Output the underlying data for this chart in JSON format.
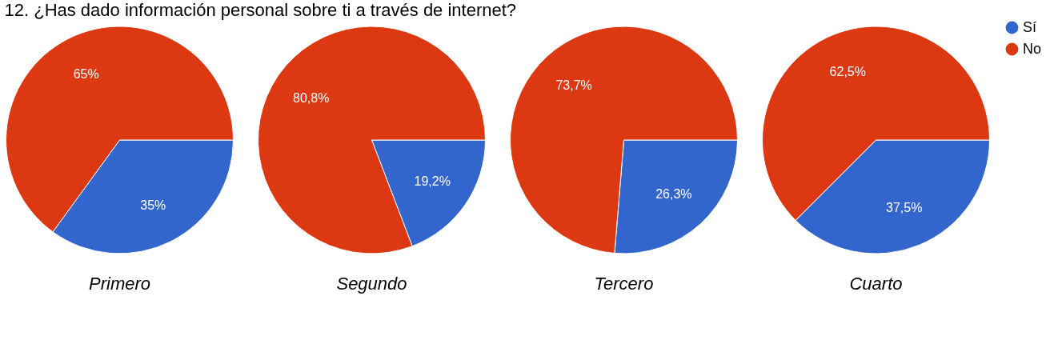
{
  "chart_data": [
    {
      "type": "pie",
      "title": "12. ¿Has dado información personal sobre ti a través de internet?",
      "xlabel": "Primero",
      "categories": [
        null,
        null
      ],
      "values": [
        35,
        65
      ],
      "colors": [
        "#3366cc",
        "#dc3912"
      ],
      "value_labels": [
        "35%",
        "65%"
      ],
      "legend": false
    },
    {
      "type": "pie",
      "xlabel": "Segundo",
      "categories": [
        null,
        null
      ],
      "values": [
        19.2,
        80.8
      ],
      "colors": [
        "#3366cc",
        "#dc3912"
      ],
      "value_labels": [
        "19,2%",
        "80,8%"
      ],
      "legend": false
    },
    {
      "type": "pie",
      "xlabel": "Tercero",
      "categories": [
        null,
        null
      ],
      "values": [
        26.3,
        73.7
      ],
      "colors": [
        "#3366cc",
        "#dc3912"
      ],
      "value_labels": [
        "26,3%",
        "73,7%"
      ],
      "legend": false
    },
    {
      "type": "pie",
      "xlabel": "Cuarto",
      "categories": [
        "Sí",
        "No"
      ],
      "values": [
        37.5,
        62.5
      ],
      "colors": [
        "#3366cc",
        "#dc3912"
      ],
      "value_labels": [
        "37,5%",
        "62,5%"
      ],
      "legend": "top right"
    }
  ]
}
